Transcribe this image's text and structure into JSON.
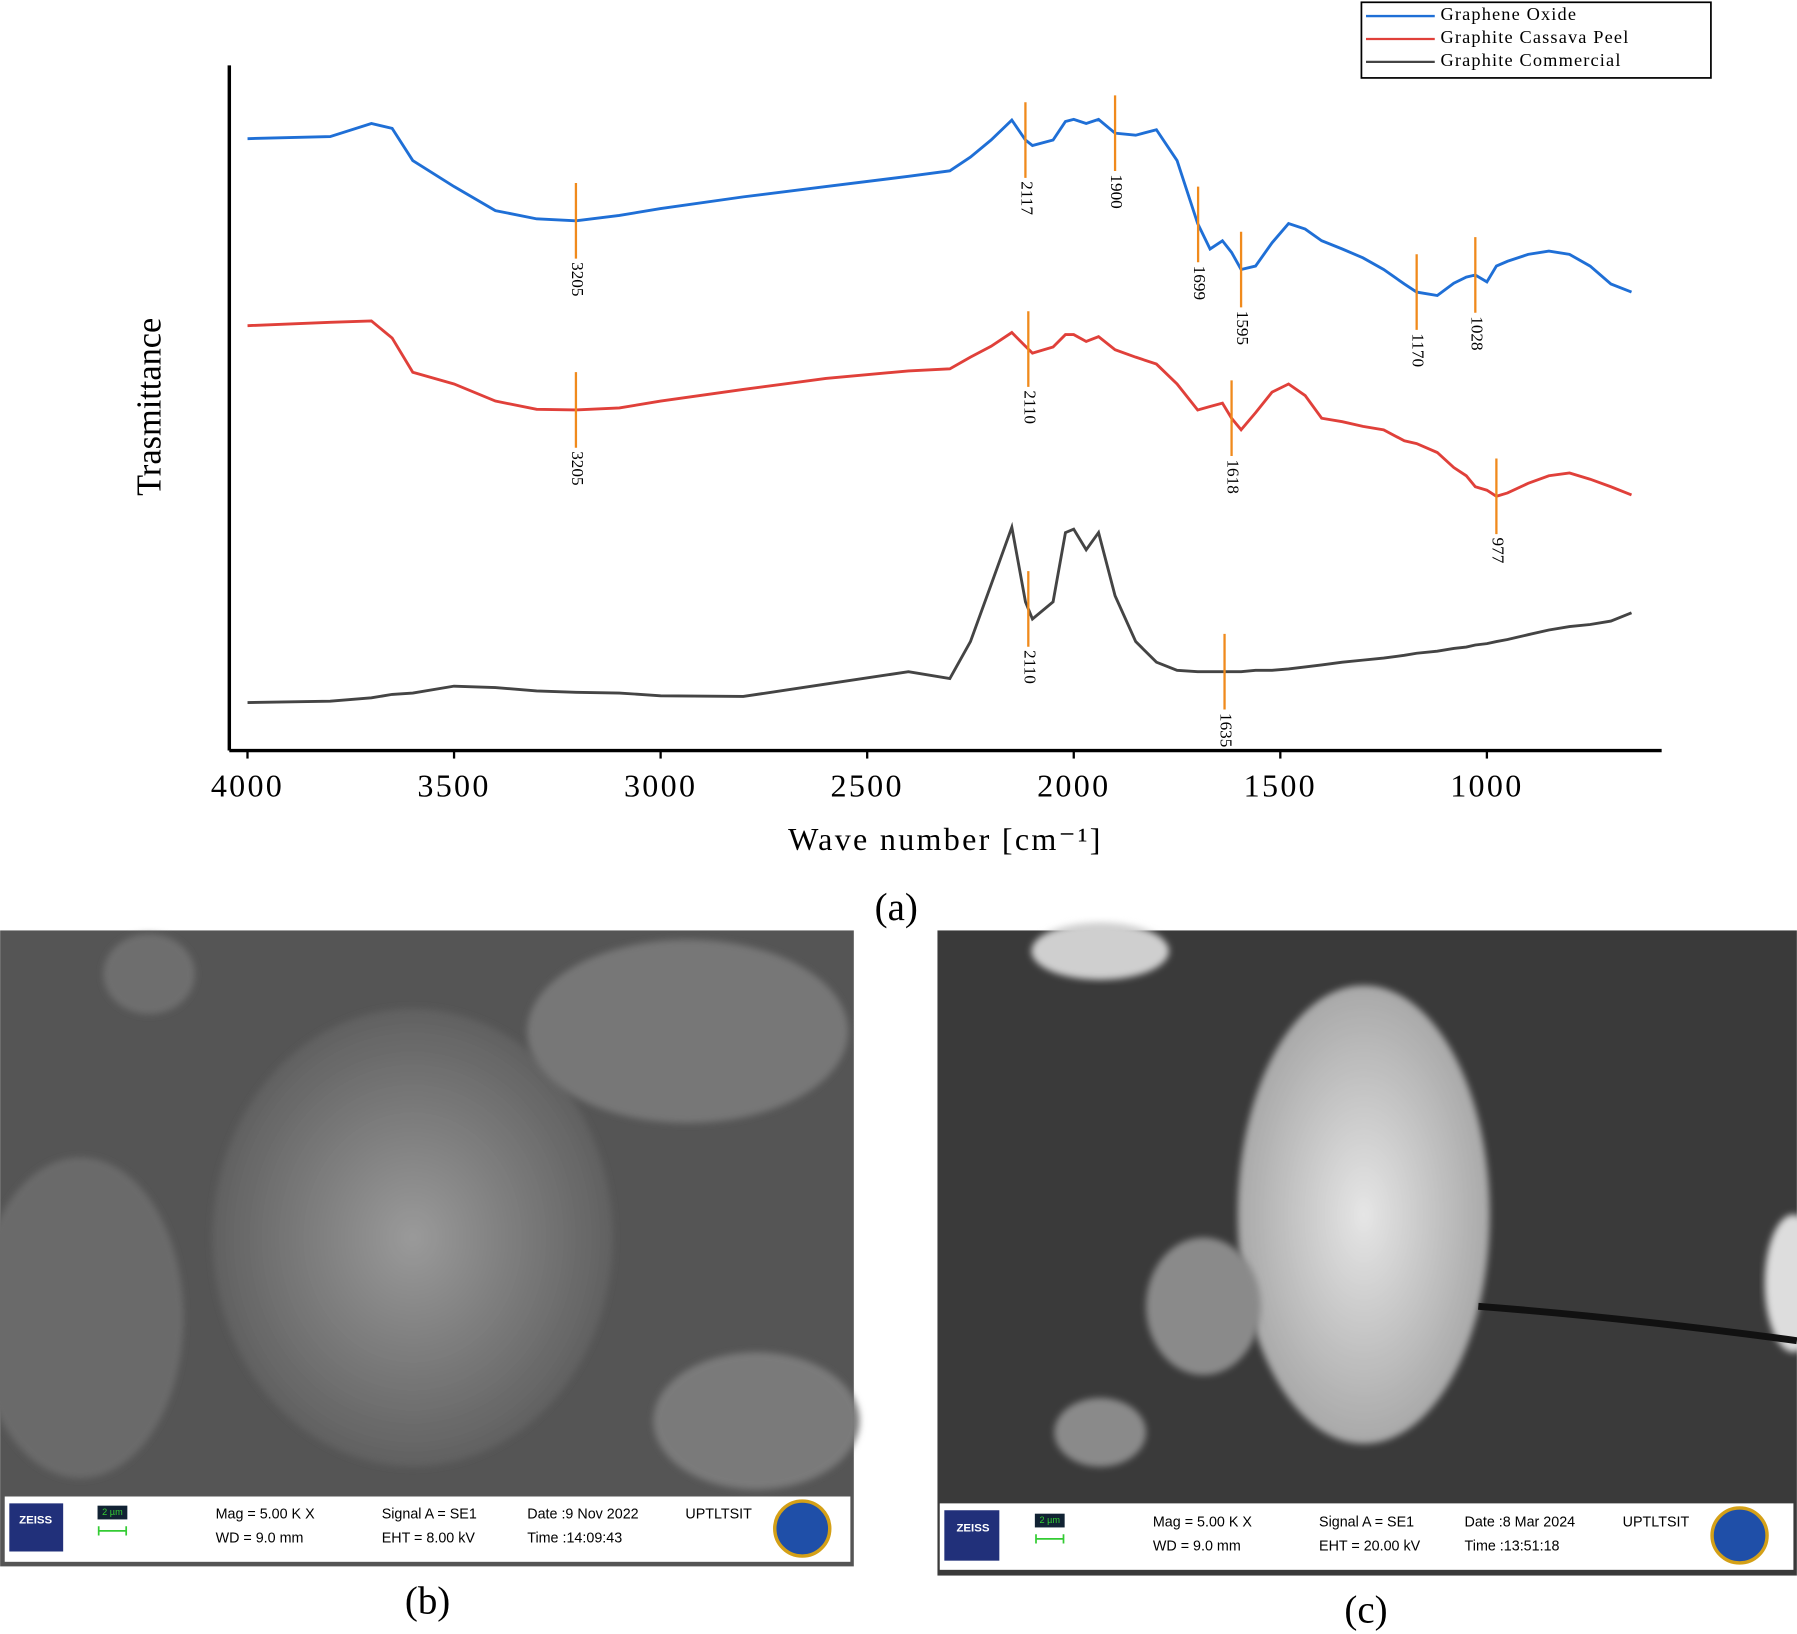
{
  "chart_data": {
    "type": "line",
    "x_label": "Wave number [cm⁻¹]",
    "y_label": "Trasmittance",
    "x": [
      4000,
      3800,
      3700,
      3650,
      3600,
      3500,
      3400,
      3300,
      3205,
      3100,
      3000,
      2800,
      2600,
      2400,
      2300,
      2250,
      2200,
      2150,
      2117,
      2100,
      2050,
      2020,
      2000,
      1970,
      1940,
      1900,
      1850,
      1800,
      1750,
      1700,
      1670,
      1640,
      1618,
      1595,
      1560,
      1520,
      1480,
      1440,
      1400,
      1350,
      1300,
      1250,
      1200,
      1170,
      1120,
      1080,
      1050,
      1028,
      1000,
      977,
      950,
      900,
      850,
      800,
      750,
      700,
      650
    ],
    "xlim": [
      4044,
      577
    ],
    "xticks": [
      4000,
      3500,
      3000,
      2500,
      2000,
      1500,
      1000
    ],
    "ylim": [
      0,
      100
    ],
    "legend": "upper right",
    "series": [
      {
        "name": "Graphene Oxide",
        "color": "#1f6fd6",
        "values": [
          89.3,
          89.6,
          91.5,
          90.8,
          86.1,
          82.3,
          78.8,
          77.6,
          77.3,
          78.1,
          79.1,
          80.8,
          82.3,
          83.8,
          84.6,
          86.6,
          89.1,
          92.0,
          89.1,
          88.3,
          89.1,
          91.8,
          92.1,
          91.5,
          92.1,
          90.1,
          89.8,
          90.6,
          86.1,
          76.9,
          73.2,
          74.4,
          72.7,
          70.2,
          70.7,
          74.1,
          76.9,
          76.1,
          74.4,
          73.2,
          71.9,
          70.2,
          68.1,
          66.9,
          66.4,
          68.2,
          69.1,
          69.4,
          68.4,
          70.7,
          71.4,
          72.4,
          72.9,
          72.4,
          70.7,
          68.1,
          66.9
        ],
        "peaks": [
          3205,
          2117,
          1900,
          1699,
          1595,
          1170,
          1028
        ]
      },
      {
        "name": "Graphite Cassava Peel",
        "color": "#e0403a",
        "values": [
          62.0,
          62.5,
          62.7,
          60.2,
          55.2,
          53.5,
          51.0,
          49.8,
          49.7,
          50.0,
          51.0,
          52.7,
          54.3,
          55.4,
          55.7,
          57.4,
          59.0,
          61.0,
          59.0,
          58.0,
          58.9,
          60.7,
          60.7,
          59.7,
          60.4,
          58.5,
          57.4,
          56.4,
          53.5,
          49.7,
          50.2,
          50.7,
          48.5,
          46.8,
          49.3,
          52.3,
          53.5,
          51.8,
          48.5,
          48.0,
          47.3,
          46.8,
          45.2,
          44.8,
          43.5,
          41.3,
          40.1,
          38.5,
          38.0,
          37.1,
          37.6,
          39.0,
          40.1,
          40.5,
          39.6,
          38.5,
          37.3
        ],
        "peaks": [
          3205,
          2110,
          1618,
          977
        ]
      },
      {
        "name": "Graphite Commercial",
        "color": "#444444",
        "values": [
          7.0,
          7.2,
          7.7,
          8.2,
          8.4,
          9.4,
          9.2,
          8.7,
          8.5,
          8.4,
          8.0,
          7.9,
          9.7,
          11.5,
          10.5,
          15.9,
          24.2,
          32.6,
          21.7,
          19.2,
          21.7,
          31.8,
          32.3,
          29.3,
          31.8,
          22.6,
          15.9,
          12.9,
          11.7,
          11.5,
          11.5,
          11.5,
          11.5,
          11.5,
          11.7,
          11.7,
          11.9,
          12.2,
          12.5,
          12.9,
          13.2,
          13.5,
          13.9,
          14.2,
          14.5,
          14.9,
          15.1,
          15.4,
          15.6,
          15.9,
          16.2,
          16.9,
          17.6,
          18.1,
          18.4,
          18.9,
          20.1
        ],
        "peaks": [
          2110,
          1635
        ]
      }
    ],
    "peak_color": "#f08a1c",
    "panel_label": "(a)"
  },
  "sem_images": [
    {
      "label": "(b)",
      "brand": "ZEISS",
      "scale": "2 µm",
      "mag": "Mag =   5.00 K X",
      "wd": "WD =  9.0 mm",
      "signal": "Signal A = SE1",
      "eht": "EHT =  8.00 kV",
      "date": "Date :9 Nov 2022",
      "time": "Time :14:09:43",
      "lab": "UPTLTSIT"
    },
    {
      "label": "(c)",
      "brand": "ZEISS",
      "scale": "2 µm",
      "mag": "Mag =   5.00 K X",
      "wd": "WD =  9.0 mm",
      "signal": "Signal A = SE1",
      "eht": "EHT = 20.00 kV",
      "date": "Date :8 Mar 2024",
      "time": "Time :13:51:18",
      "lab": "UPTLTSIT"
    }
  ]
}
